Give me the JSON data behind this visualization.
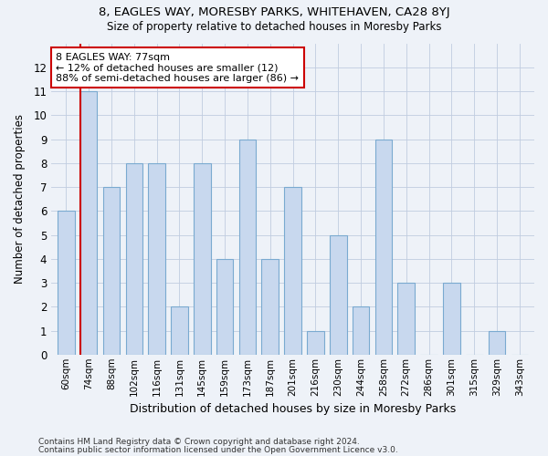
{
  "title1": "8, EAGLES WAY, MORESBY PARKS, WHITEHAVEN, CA28 8YJ",
  "title2": "Size of property relative to detached houses in Moresby Parks",
  "xlabel": "Distribution of detached houses by size in Moresby Parks",
  "ylabel": "Number of detached properties",
  "categories": [
    "60sqm",
    "74sqm",
    "88sqm",
    "102sqm",
    "116sqm",
    "131sqm",
    "145sqm",
    "159sqm",
    "173sqm",
    "187sqm",
    "201sqm",
    "216sqm",
    "230sqm",
    "244sqm",
    "258sqm",
    "272sqm",
    "286sqm",
    "301sqm",
    "315sqm",
    "329sqm",
    "343sqm"
  ],
  "values": [
    6,
    11,
    7,
    8,
    8,
    2,
    8,
    4,
    9,
    4,
    7,
    1,
    5,
    2,
    9,
    3,
    0,
    3,
    0,
    1,
    0
  ],
  "bar_color": "#c8d8ee",
  "bar_edge_color": "#7aaad0",
  "highlight_bar_index": 1,
  "red_line_color": "#cc0000",
  "annotation_text": "8 EAGLES WAY: 77sqm\n← 12% of detached houses are smaller (12)\n88% of semi-detached houses are larger (86) →",
  "annotation_box_color": "white",
  "annotation_box_edge_color": "#cc0000",
  "ylim": [
    0,
    13
  ],
  "yticks": [
    0,
    1,
    2,
    3,
    4,
    5,
    6,
    7,
    8,
    9,
    10,
    11,
    12,
    13
  ],
  "footer1": "Contains HM Land Registry data © Crown copyright and database right 2024.",
  "footer2": "Contains public sector information licensed under the Open Government Licence v3.0.",
  "bg_color": "#eef2f8"
}
